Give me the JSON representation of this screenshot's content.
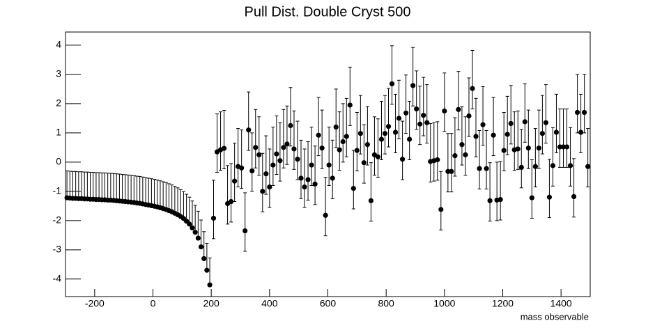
{
  "chart_data": {
    "type": "errorbar",
    "title": "Pull Dist. Double Cryst 500",
    "x_label": "mass observable",
    "xlim": [
      -300,
      1500
    ],
    "xticks": [
      -200,
      0,
      200,
      400,
      600,
      800,
      1000,
      1200,
      1400
    ],
    "ylim": [
      -4.6,
      4.45
    ],
    "yticks": [
      -4,
      -3,
      -2,
      -1,
      0,
      1,
      2,
      3,
      4
    ],
    "grid": false,
    "series": [
      {
        "color": "#000000",
        "err_high": 0.92,
        "err_low": 0,
        "x": [
          -295,
          -285,
          -275,
          -265,
          -255,
          -245,
          -235,
          -225,
          -215,
          -205,
          -195,
          -185,
          -175,
          -165,
          -155,
          -145,
          -135,
          -125,
          -115,
          -105,
          -95,
          -85,
          -75,
          -65,
          -55,
          -45,
          -35,
          -25,
          -15,
          -5,
          5,
          15,
          25,
          35,
          45,
          55,
          65,
          75,
          85,
          95,
          105,
          115,
          125,
          135,
          145,
          155,
          165,
          175,
          185,
          195
        ],
        "values": [
          -1.22,
          -1.23,
          -1.24,
          -1.24,
          -1.25,
          -1.25,
          -1.26,
          -1.26,
          -1.27,
          -1.27,
          -1.28,
          -1.28,
          -1.29,
          -1.29,
          -1.3,
          -1.3,
          -1.31,
          -1.32,
          -1.33,
          -1.34,
          -1.35,
          -1.36,
          -1.37,
          -1.38,
          -1.4,
          -1.41,
          -1.43,
          -1.45,
          -1.47,
          -1.49,
          -1.51,
          -1.53,
          -1.56,
          -1.59,
          -1.62,
          -1.66,
          -1.7,
          -1.75,
          -1.8,
          -1.86,
          -1.93,
          -2.02,
          -2.12,
          -2.25,
          -2.4,
          -2.6,
          -2.9,
          -3.3,
          -3.7,
          -4.2
        ]
      },
      {
        "color": "#000000",
        "err_high": 1.3,
        "err_low": 0.7,
        "x": [
          208,
          220,
          232,
          244,
          256,
          268,
          280,
          292,
          304,
          316,
          328,
          340,
          352,
          364,
          376,
          388,
          400,
          412,
          424,
          436,
          448,
          460,
          472,
          484,
          496,
          508,
          520,
          532,
          544,
          556,
          568,
          580,
          592,
          604,
          616,
          628,
          640,
          652,
          664,
          676,
          688,
          700,
          712,
          724,
          736,
          748,
          760,
          772,
          784,
          796,
          808,
          820,
          832,
          844,
          856,
          868,
          880,
          892,
          904,
          916,
          928,
          940,
          952,
          964,
          976,
          988,
          1000,
          1012,
          1024,
          1036,
          1048,
          1060,
          1072,
          1084,
          1096,
          1108,
          1120,
          1132,
          1144,
          1156,
          1168,
          1180,
          1192,
          1204,
          1216,
          1228,
          1240,
          1252,
          1264,
          1276,
          1288,
          1300,
          1312,
          1324,
          1336,
          1348,
          1360,
          1372,
          1384,
          1396,
          1408,
          1420,
          1432,
          1444,
          1456,
          1468,
          1480,
          1492
        ],
        "values": [
          -1.92,
          0.35,
          0.42,
          0.47,
          -1.42,
          -1.35,
          -0.65,
          -0.15,
          -0.2,
          -2.35,
          1.1,
          -0.3,
          0.5,
          0.25,
          -1.0,
          -0.4,
          -0.85,
          -0.1,
          0.28,
          0.05,
          0.5,
          0.62,
          1.25,
          0.45,
          0.1,
          -0.55,
          -0.85,
          -0.6,
          -0.1,
          -0.75,
          0.92,
          0.48,
          -1.82,
          -0.1,
          -0.55,
          1.2,
          0.42,
          0.7,
          0.88,
          1.95,
          -0.9,
          0.4,
          0.98,
          -0.02,
          0.6,
          -1.32,
          0.25,
          0.18,
          0.78,
          0.98,
          1.22,
          2.68,
          1.02,
          1.5,
          0.1,
          1.68,
          0.78,
          2.62,
          1.82,
          1.3,
          1.6,
          1.35,
          0.02,
          0.05,
          0.08,
          -1.62,
          1.75,
          -0.32,
          -0.32,
          0.22,
          1.8,
          0.6,
          0.25,
          1.58,
          2.52,
          0.88,
          -0.22,
          1.28,
          -0.22,
          -1.32,
          0.92,
          -1.3,
          -1.28,
          0.4,
          0.95,
          1.32,
          0.42,
          0.45,
          -0.18,
          1.38,
          0.48,
          -1.22,
          -0.15,
          0.48,
          0.98,
          1.35,
          -1.2,
          -0.12,
          1.02,
          0.52,
          0.52,
          0.52,
          -0.12,
          -1.18,
          1.7,
          1.02,
          1.7,
          -0.15
        ]
      }
    ]
  }
}
